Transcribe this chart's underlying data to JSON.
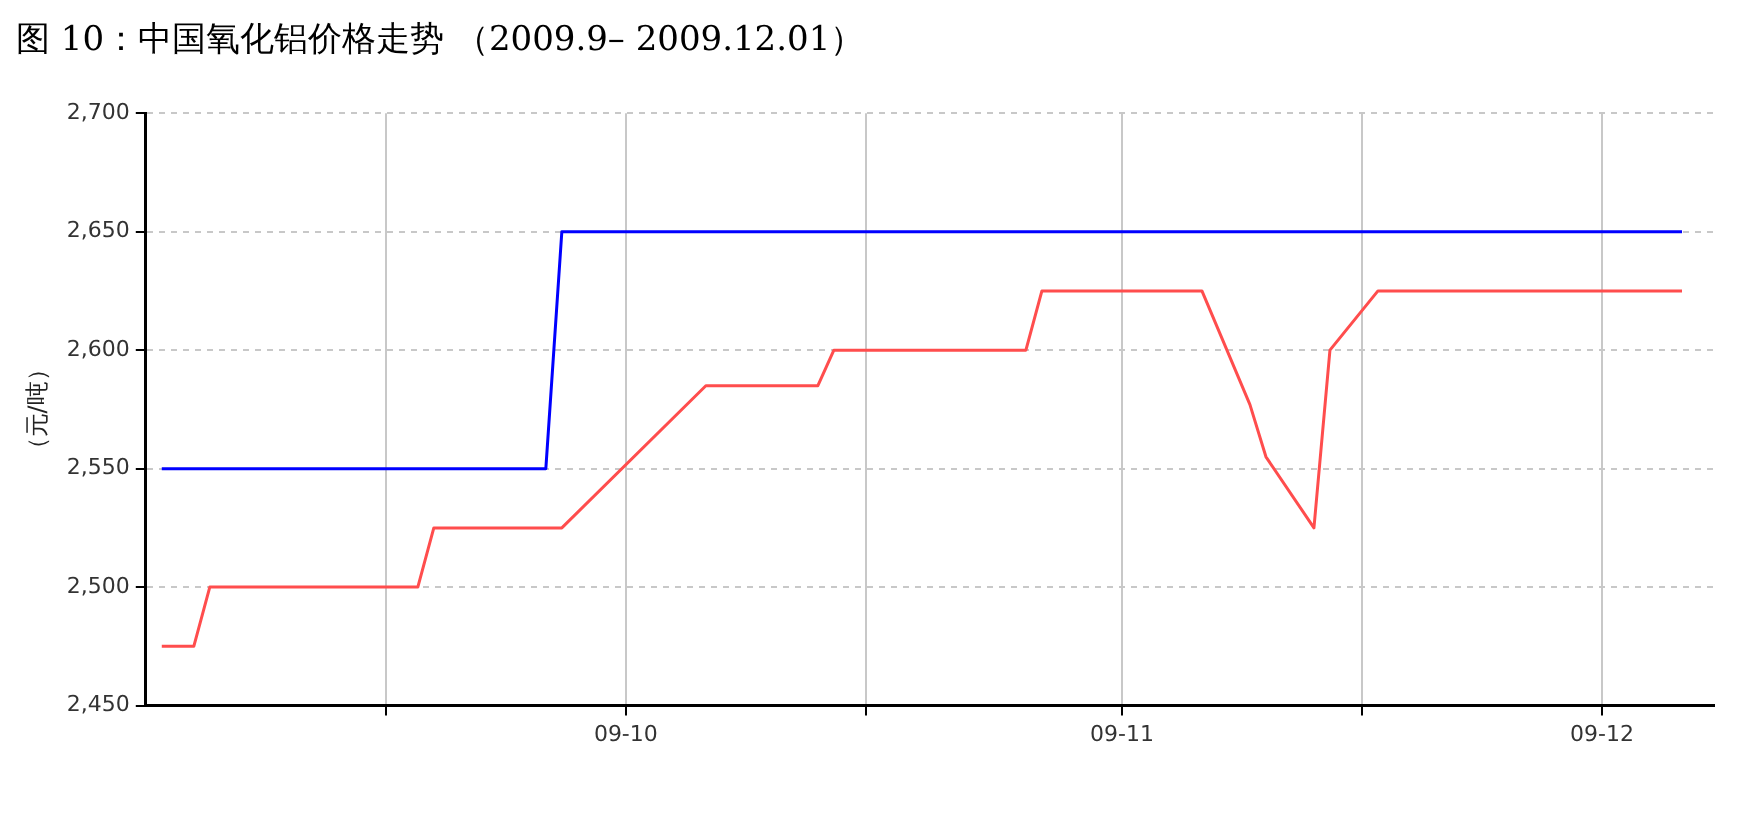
{
  "chart_data": {
    "type": "line",
    "title": "图 10：中国氧化铝价格走势 （2009.9– 2009.12.01）",
    "ylabel": "（元/吨）",
    "xlim": [
      "2009-09-01",
      "2009-12-08"
    ],
    "xticks": [
      {
        "value": "2009-09-16",
        "label": null
      },
      {
        "value": "2009-10-01",
        "label": "09-10"
      },
      {
        "value": "2009-10-16",
        "label": null
      },
      {
        "value": "2009-11-01",
        "label": "09-11"
      },
      {
        "value": "2009-11-16",
        "label": null
      },
      {
        "value": "2009-12-01",
        "label": "09-12"
      }
    ],
    "ylim": [
      2450,
      2700
    ],
    "yticks": [
      {
        "value": 2450,
        "label": "2,450"
      },
      {
        "value": 2500,
        "label": "2,500"
      },
      {
        "value": 2550,
        "label": "2,550"
      },
      {
        "value": 2600,
        "label": "2,600"
      },
      {
        "value": 2650,
        "label": "2,650"
      },
      {
        "value": 2700,
        "label": "2,700"
      }
    ],
    "series": [
      {
        "color": "#0000ff",
        "x": [
          "2009-09-02",
          "2009-09-26",
          "2009-09-27",
          "2009-12-06"
        ],
        "values": [
          2550,
          2550,
          2650,
          2650
        ]
      },
      {
        "color": "#ff4d4d",
        "x": [
          "2009-09-02",
          "2009-09-04",
          "2009-09-05",
          "2009-09-18",
          "2009-09-19",
          "2009-09-27",
          "2009-10-06",
          "2009-10-13",
          "2009-10-14",
          "2009-10-26",
          "2009-10-27",
          "2009-11-06",
          "2009-11-09",
          "2009-11-10",
          "2009-11-13",
          "2009-11-14",
          "2009-11-17",
          "2009-12-06"
        ],
        "values": [
          2475,
          2475,
          2500,
          2500,
          2525,
          2525,
          2585,
          2585,
          2600,
          2600,
          2625,
          2625,
          2577,
          2555,
          2525,
          2600,
          2625,
          2625
        ]
      }
    ],
    "grid": true,
    "legend": false,
    "marker": "none",
    "line_style": "solid"
  }
}
